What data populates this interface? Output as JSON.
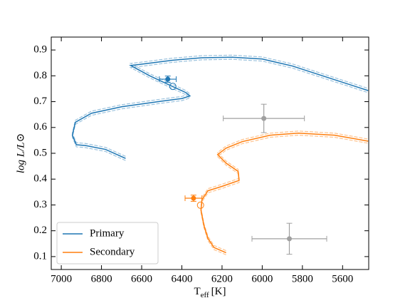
{
  "chart_data": {
    "type": "line",
    "xlabel_main": "T",
    "xlabel_sub": "eff",
    "xlabel_unit": "[K]",
    "ylabel": "log L/L⊙",
    "xlim": [
      7050,
      5470
    ],
    "ylim": [
      0.05,
      0.95
    ],
    "xticks": [
      7000,
      6800,
      6600,
      6400,
      6200,
      6000,
      5800,
      5600
    ],
    "yticks": [
      0.1,
      0.2,
      0.3,
      0.4,
      0.5,
      0.6,
      0.7,
      0.8,
      0.9
    ],
    "legend": "lower left",
    "series": [
      {
        "style": "dashed",
        "color": "#9cc3de",
        "x": [
          6680,
          6780,
          6880,
          6925,
          6945,
          6930,
          6850,
          6700,
          6500,
          6400,
          6360,
          6380,
          6450,
          6560,
          6655,
          6600,
          6450,
          6300,
          6150,
          6000,
          5850,
          5700,
          5473
        ],
        "y": [
          0.488,
          0.523,
          0.538,
          0.541,
          0.578,
          0.628,
          0.663,
          0.688,
          0.71,
          0.72,
          0.73,
          0.743,
          0.768,
          0.808,
          0.848,
          0.853,
          0.868,
          0.878,
          0.88,
          0.873,
          0.846,
          0.808,
          0.751
        ]
      },
      {
        "style": "dashed",
        "color": "#9cc3de",
        "x": [
          6680,
          6780,
          6880,
          6925,
          6945,
          6930,
          6850,
          6700,
          6500,
          6400,
          6360,
          6380,
          6450,
          6560,
          6655,
          6600,
          6450,
          6300,
          6150,
          6000,
          5850,
          5700,
          5473
        ],
        "y": [
          0.472,
          0.507,
          0.522,
          0.525,
          0.562,
          0.612,
          0.647,
          0.672,
          0.694,
          0.704,
          0.714,
          0.727,
          0.752,
          0.792,
          0.832,
          0.837,
          0.852,
          0.862,
          0.864,
          0.857,
          0.83,
          0.792,
          0.735
        ]
      },
      {
        "style": "dashed",
        "color": "#ffc48f",
        "x": [
          6180,
          6240,
          6270,
          6290,
          6305,
          6300,
          6270,
          6200,
          6115,
          6120,
          6180,
          6222,
          6180,
          6100,
          5960,
          5820,
          5640,
          5473
        ],
        "y": [
          0.123,
          0.143,
          0.178,
          0.228,
          0.288,
          0.328,
          0.363,
          0.38,
          0.403,
          0.438,
          0.47,
          0.503,
          0.528,
          0.553,
          0.578,
          0.586,
          0.578,
          0.555
        ]
      },
      {
        "style": "dashed",
        "color": "#ffc48f",
        "x": [
          6180,
          6240,
          6270,
          6290,
          6305,
          6300,
          6270,
          6200,
          6115,
          6120,
          6180,
          6222,
          6180,
          6100,
          5960,
          5820,
          5640,
          5473
        ],
        "y": [
          0.107,
          0.127,
          0.162,
          0.212,
          0.272,
          0.312,
          0.347,
          0.364,
          0.387,
          0.422,
          0.454,
          0.487,
          0.512,
          0.537,
          0.562,
          0.57,
          0.562,
          0.539
        ]
      },
      {
        "name": "Primary",
        "style": "solid",
        "color": "#1f77b4",
        "x": [
          6680,
          6780,
          6880,
          6925,
          6945,
          6930,
          6850,
          6700,
          6500,
          6400,
          6360,
          6380,
          6450,
          6560,
          6655,
          6600,
          6450,
          6300,
          6150,
          6000,
          5850,
          5700,
          5473
        ],
        "y": [
          0.48,
          0.515,
          0.53,
          0.533,
          0.57,
          0.62,
          0.655,
          0.68,
          0.702,
          0.712,
          0.722,
          0.735,
          0.76,
          0.8,
          0.84,
          0.845,
          0.86,
          0.87,
          0.872,
          0.865,
          0.838,
          0.8,
          0.743
        ]
      },
      {
        "name": "Secondary",
        "style": "solid",
        "color": "#ff7f0e",
        "x": [
          6180,
          6240,
          6270,
          6290,
          6305,
          6300,
          6270,
          6200,
          6115,
          6120,
          6180,
          6222,
          6180,
          6100,
          5960,
          5820,
          5640,
          5473
        ],
        "y": [
          0.115,
          0.135,
          0.17,
          0.22,
          0.28,
          0.32,
          0.355,
          0.372,
          0.395,
          0.43,
          0.462,
          0.495,
          0.52,
          0.545,
          0.57,
          0.578,
          0.57,
          0.547
        ]
      }
    ],
    "observations": [
      {
        "x": 6470,
        "y": 0.787,
        "xerr": 42,
        "yerr": 0.012,
        "color": "#1f77b4"
      },
      {
        "x": 6342,
        "y": 0.326,
        "xerr": 42,
        "yerr": 0.012,
        "color": "#ff7f0e"
      },
      {
        "x": 5992,
        "y": 0.635,
        "xerr": 202,
        "yerr": 0.055,
        "color": "#a0a0a0"
      },
      {
        "x": 5865,
        "y": 0.169,
        "xerr": 186,
        "yerr": 0.06,
        "color": "#a0a0a0"
      }
    ],
    "models": [
      {
        "x": 6445,
        "y": 0.759,
        "color": "#1f77b4"
      },
      {
        "x": 6307,
        "y": 0.299,
        "color": "#ff7f0e"
      }
    ]
  }
}
